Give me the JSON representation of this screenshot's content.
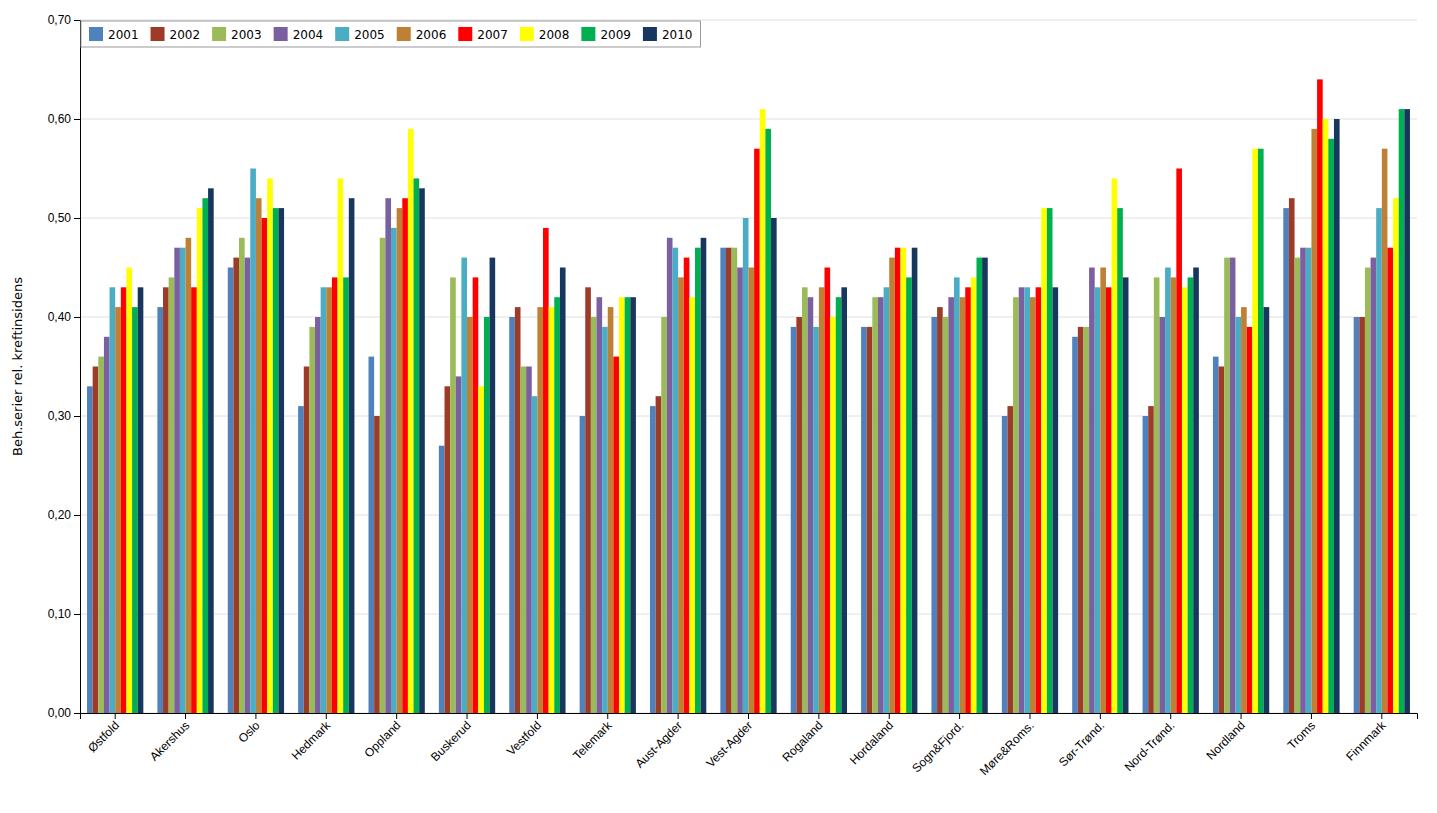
{
  "chart_data": {
    "type": "bar",
    "ylabel": "Beh.serier rel. kreftinsidens",
    "categories": [
      "Østfold",
      "Akershus",
      "Oslo",
      "Hedmark",
      "Oppland",
      "Buskerud",
      "Vestfold",
      "Telemark",
      "Aust-Agder",
      "Vest-Agder",
      "Rogaland",
      "Hordaland",
      "Sogn&Fjord.",
      "Møre&Roms.",
      "Sør-Trønd.",
      "Nord-Trønd.",
      "Nordland",
      "Troms",
      "Finnmark"
    ],
    "series": [
      {
        "name": "2001",
        "color": "#4F81BD",
        "values": [
          0.33,
          0.41,
          0.45,
          0.31,
          0.36,
          0.27,
          0.4,
          0.3,
          0.31,
          0.47,
          0.39,
          0.39,
          0.4,
          0.3,
          0.38,
          0.3,
          0.36,
          0.51,
          0.4
        ]
      },
      {
        "name": "2002",
        "color": "#9E3B28",
        "values": [
          0.35,
          0.43,
          0.46,
          0.35,
          0.3,
          0.33,
          0.41,
          0.43,
          0.32,
          0.47,
          0.4,
          0.39,
          0.41,
          0.31,
          0.39,
          0.31,
          0.35,
          0.52,
          0.4
        ]
      },
      {
        "name": "2003",
        "color": "#9BBB59",
        "values": [
          0.36,
          0.44,
          0.48,
          0.39,
          0.48,
          0.44,
          0.35,
          0.4,
          0.4,
          0.47,
          0.43,
          0.42,
          0.4,
          0.42,
          0.39,
          0.44,
          0.46,
          0.46,
          0.45
        ]
      },
      {
        "name": "2004",
        "color": "#7B60A1",
        "values": [
          0.38,
          0.47,
          0.46,
          0.4,
          0.52,
          0.34,
          0.35,
          0.42,
          0.48,
          0.45,
          0.42,
          0.42,
          0.42,
          0.43,
          0.45,
          0.4,
          0.46,
          0.47,
          0.46
        ]
      },
      {
        "name": "2005",
        "color": "#4BACC6",
        "values": [
          0.43,
          0.47,
          0.55,
          0.43,
          0.49,
          0.46,
          0.32,
          0.39,
          0.47,
          0.5,
          0.39,
          0.43,
          0.44,
          0.43,
          0.43,
          0.45,
          0.4,
          0.47,
          0.51
        ]
      },
      {
        "name": "2006",
        "color": "#BE8034",
        "values": [
          0.41,
          0.48,
          0.52,
          0.43,
          0.51,
          0.4,
          0.41,
          0.41,
          0.44,
          0.45,
          0.43,
          0.46,
          0.42,
          0.42,
          0.45,
          0.44,
          0.41,
          0.59,
          0.57
        ]
      },
      {
        "name": "2007",
        "color": "#FF0000",
        "values": [
          0.43,
          0.43,
          0.5,
          0.44,
          0.52,
          0.44,
          0.49,
          0.36,
          0.46,
          0.57,
          0.45,
          0.47,
          0.43,
          0.43,
          0.43,
          0.55,
          0.39,
          0.64,
          0.47
        ]
      },
      {
        "name": "2008",
        "color": "#FFFF00",
        "values": [
          0.45,
          0.51,
          0.54,
          0.54,
          0.59,
          0.33,
          0.41,
          0.42,
          0.42,
          0.61,
          0.4,
          0.47,
          0.44,
          0.51,
          0.54,
          0.43,
          0.57,
          0.6,
          0.52
        ]
      },
      {
        "name": "2009",
        "color": "#00B050",
        "values": [
          0.41,
          0.52,
          0.51,
          0.44,
          0.54,
          0.4,
          0.42,
          0.42,
          0.47,
          0.59,
          0.42,
          0.44,
          0.46,
          0.51,
          0.51,
          0.44,
          0.57,
          0.58,
          0.61
        ]
      },
      {
        "name": "2010",
        "color": "#17375E",
        "values": [
          0.43,
          0.53,
          0.51,
          0.52,
          0.53,
          0.46,
          0.45,
          0.42,
          0.48,
          0.5,
          0.43,
          0.47,
          0.46,
          0.43,
          0.44,
          0.45,
          0.41,
          0.6,
          0.61
        ]
      }
    ],
    "ylim": [
      0.0,
      0.7
    ],
    "yticks": [
      {
        "value": 0.0,
        "label": "0,00"
      },
      {
        "value": 0.1,
        "label": "0,10"
      },
      {
        "value": 0.2,
        "label": "0,20"
      },
      {
        "value": 0.3,
        "label": "0,30"
      },
      {
        "value": 0.4,
        "label": "0,40"
      },
      {
        "value": 0.5,
        "label": "0,50"
      },
      {
        "value": 0.6,
        "label": "0,60"
      },
      {
        "value": 0.7,
        "label": "0,70"
      }
    ],
    "grid": true,
    "legend": "upper left"
  }
}
